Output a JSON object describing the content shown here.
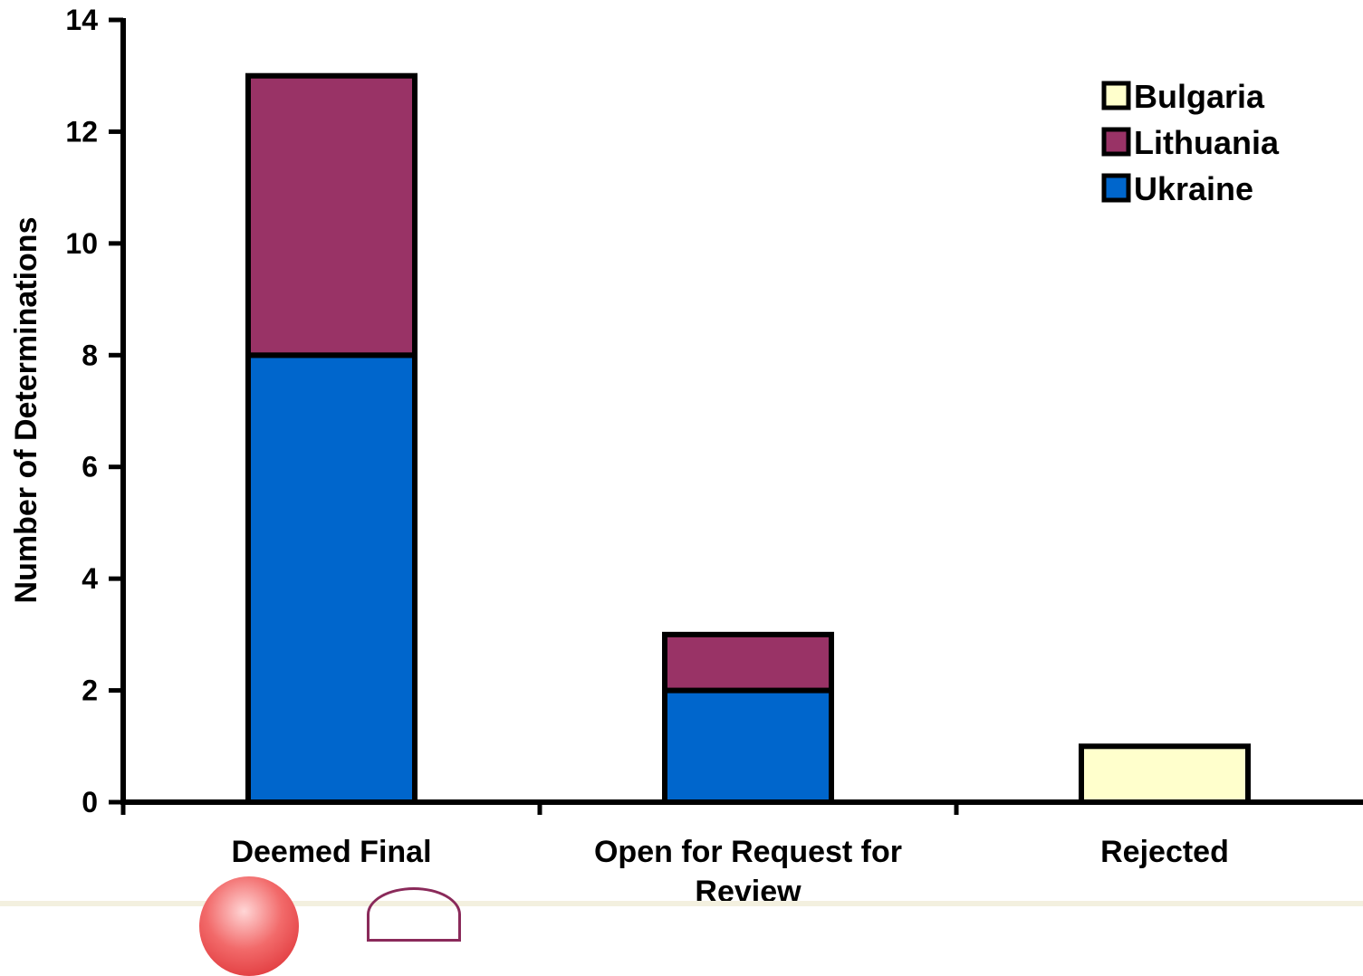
{
  "chart_data": {
    "type": "bar",
    "stacked": true,
    "categories": [
      "Deemed Final",
      "Open for Request for Review",
      "Rejected"
    ],
    "series": [
      {
        "name": "Bulgaria",
        "color": "#ffffcc",
        "values": [
          0,
          0,
          1
        ]
      },
      {
        "name": "Lithuania",
        "color": "#993366",
        "values": [
          5,
          1,
          0
        ]
      },
      {
        "name": "Ukraine",
        "color": "#0066cc",
        "values": [
          8,
          2,
          0
        ]
      }
    ],
    "stack_order": [
      "Ukraine",
      "Lithuania",
      "Bulgaria"
    ],
    "title": "",
    "xlabel": "",
    "ylabel": "Number of Determinations",
    "ylim": [
      0,
      14
    ],
    "yticks": [
      0,
      2,
      4,
      6,
      8,
      10,
      12,
      14
    ],
    "grid": false,
    "legend_position": "top-right"
  }
}
